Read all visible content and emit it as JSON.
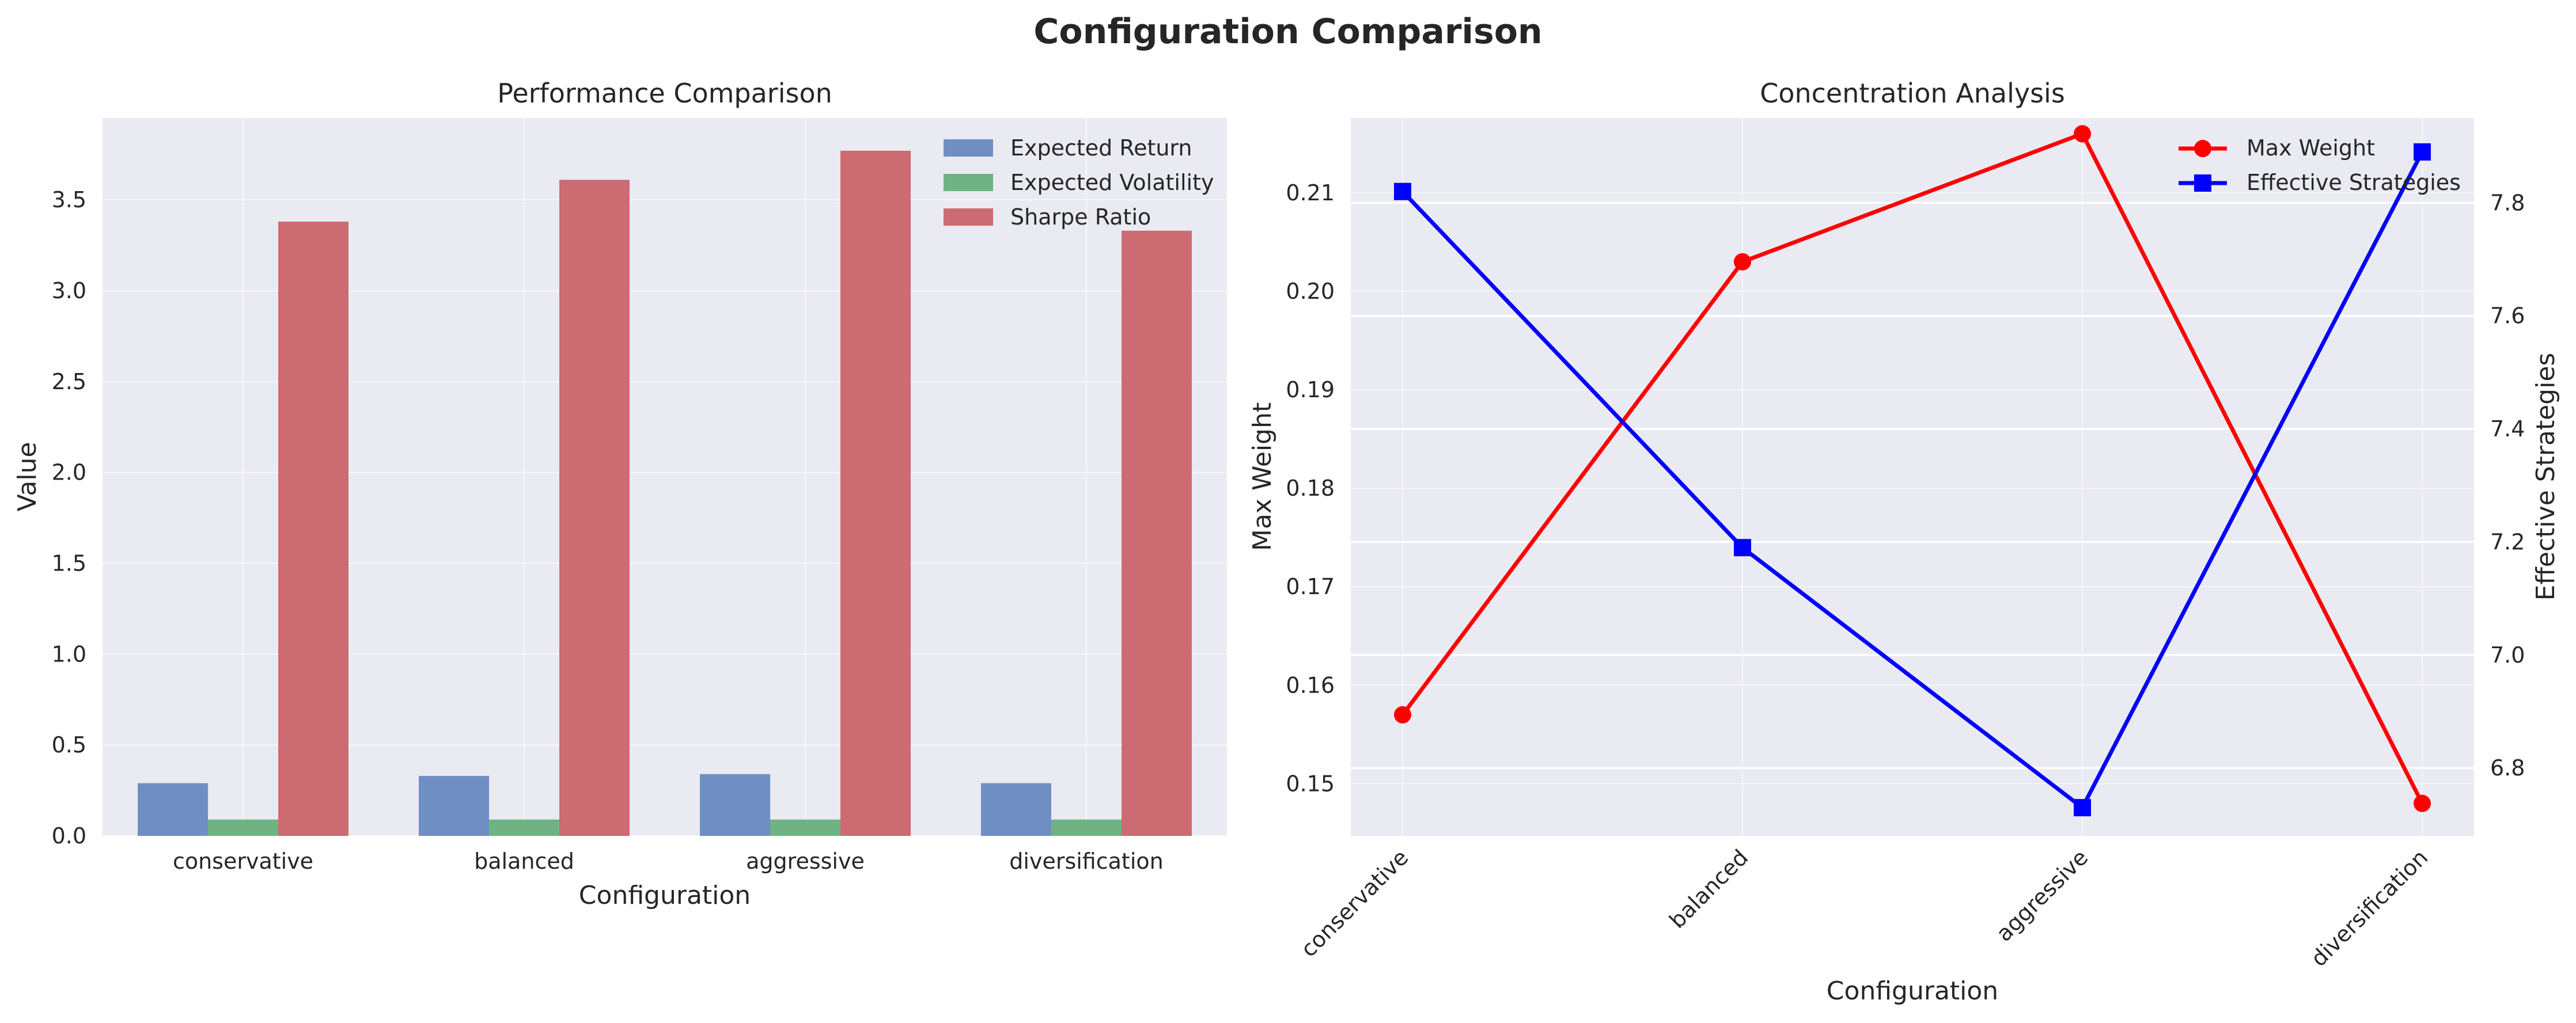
{
  "figure": {
    "title": "Configuration Comparison"
  },
  "chart_data": [
    {
      "type": "bar",
      "title": "Performance Comparison",
      "xlabel": "Configuration",
      "ylabel": "Value",
      "categories": [
        "conservative",
        "balanced",
        "aggressive",
        "diversification"
      ],
      "ylim": [
        0,
        3.95
      ],
      "yticks": [
        0.0,
        0.5,
        1.0,
        1.5,
        2.0,
        2.5,
        3.0,
        3.5
      ],
      "ytick_labels": [
        "0.0",
        "0.5",
        "1.0",
        "1.5",
        "2.0",
        "2.5",
        "3.0",
        "3.5"
      ],
      "grid": true,
      "legend_position": "top-right",
      "series": [
        {
          "name": "Expected Return",
          "color": "#6f8fc4",
          "values": [
            0.29,
            0.33,
            0.34,
            0.29
          ]
        },
        {
          "name": "Expected Volatility",
          "color": "#6fb382",
          "values": [
            0.09,
            0.09,
            0.09,
            0.09
          ]
        },
        {
          "name": "Sharpe Ratio",
          "color": "#cc6b71",
          "values": [
            3.38,
            3.61,
            3.77,
            3.33
          ]
        }
      ]
    },
    {
      "type": "line",
      "title": "Concentration Analysis",
      "xlabel": "Configuration",
      "categories": [
        "conservative",
        "balanced",
        "aggressive",
        "diversification"
      ],
      "grid": true,
      "legend_position": "top-right",
      "left_axis": {
        "label": "Max Weight",
        "color": "#ff0000",
        "ylim": [
          0.1447,
          0.2176
        ],
        "yticks": [
          0.15,
          0.16,
          0.17,
          0.18,
          0.19,
          0.2,
          0.21
        ],
        "ytick_labels": [
          "0.15",
          "0.16",
          "0.17",
          "0.18",
          "0.19",
          "0.20",
          "0.21"
        ]
      },
      "right_axis": {
        "label": "Effective Strategies",
        "color": "#0000ff",
        "ylim": [
          6.68,
          7.95
        ],
        "yticks": [
          6.8,
          7.0,
          7.2,
          7.4,
          7.6,
          7.8
        ],
        "ytick_labels": [
          "6.8",
          "7.0",
          "7.2",
          "7.4",
          "7.6",
          "7.8"
        ]
      },
      "series": [
        {
          "name": "Max Weight",
          "axis": "left",
          "color": "#ff0000",
          "marker": "circle",
          "values": [
            0.157,
            0.203,
            0.216,
            0.148
          ]
        },
        {
          "name": "Effective Strategies",
          "axis": "right",
          "color": "#0000ff",
          "marker": "square",
          "values": [
            7.82,
            7.19,
            6.73,
            7.89
          ]
        }
      ]
    }
  ]
}
